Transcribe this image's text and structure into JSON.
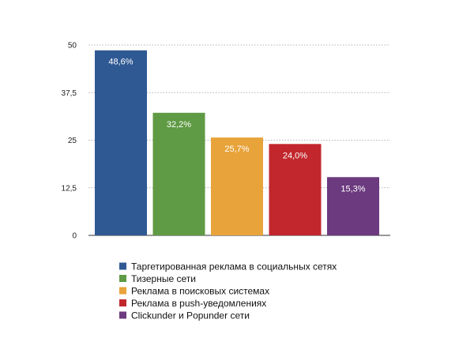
{
  "chart_data": {
    "type": "bar",
    "title": "",
    "xlabel": "",
    "ylabel": "",
    "ylim": [
      0,
      50
    ],
    "yticks": [
      "0",
      "12,5",
      "25",
      "37,5",
      "50"
    ],
    "ytick_values": [
      0,
      12.5,
      25,
      37.5,
      50
    ],
    "grid": true,
    "legend_position": "bottom",
    "categories": [
      "Таргетированная реклама в социальных сетях",
      "Тизерные сети",
      "Реклама в поисковых системах",
      "Реклама в push-уведомлениях",
      "Clickunder и Popunder сети"
    ],
    "values": [
      48.6,
      32.2,
      25.7,
      24.0,
      15.3
    ],
    "data_labels": [
      "48,6%",
      "32,2%",
      "25,7%",
      "24,0%",
      "15,3%"
    ],
    "colors": [
      "#2f5993",
      "#5f9a44",
      "#e8a33a",
      "#c1272d",
      "#6b3a7f"
    ]
  }
}
